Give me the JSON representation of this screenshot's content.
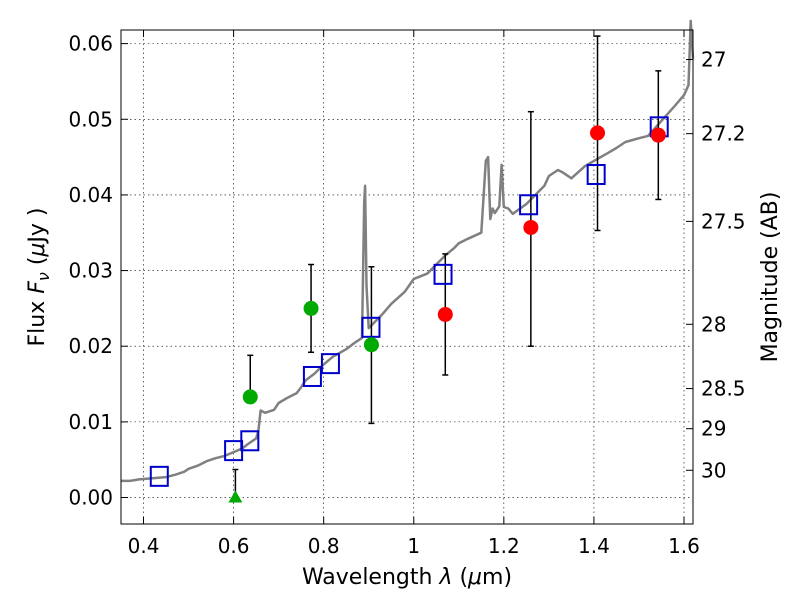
{
  "chart_data": {
    "type": "scatter",
    "title": "",
    "xlabel_parts": [
      "Wavelength  ",
      "λ",
      " (",
      "μ",
      "m)"
    ],
    "ylabel_parts": [
      "Flux  ",
      "F",
      "ν",
      "  (",
      "μ",
      "Jy )"
    ],
    "y2label": "Magnitude (AB)",
    "xlim": [
      0.35,
      1.62
    ],
    "ylim": [
      -0.0035,
      0.0618
    ],
    "grid": true,
    "x_ticks": [
      {
        "value": 0.4,
        "label": "0.4"
      },
      {
        "value": 0.6,
        "label": "0.6"
      },
      {
        "value": 0.8,
        "label": "0.8"
      },
      {
        "value": 1.0,
        "label": "1"
      },
      {
        "value": 1.2,
        "label": "1.2"
      },
      {
        "value": 1.4,
        "label": "1.4"
      },
      {
        "value": 1.6,
        "label": "1.6"
      }
    ],
    "y_ticks": [
      {
        "value": 0.0,
        "label": "0.00"
      },
      {
        "value": 0.01,
        "label": "0.01"
      },
      {
        "value": 0.02,
        "label": "0.02"
      },
      {
        "value": 0.03,
        "label": "0.03"
      },
      {
        "value": 0.04,
        "label": "0.04"
      },
      {
        "value": 0.05,
        "label": "0.05"
      },
      {
        "value": 0.06,
        "label": "0.06"
      }
    ],
    "y2_ticks": [
      {
        "flux": 0.0579,
        "label": "27"
      },
      {
        "flux": 0.0481,
        "label": "27.2"
      },
      {
        "flux": 0.0365,
        "label": "27.5"
      },
      {
        "flux": 0.0229,
        "label": "28"
      },
      {
        "flux": 0.0144,
        "label": "28.5"
      },
      {
        "flux": 0.0091,
        "label": "29"
      },
      {
        "flux": 0.0036,
        "label": "30"
      }
    ],
    "colors": {
      "model": "#808080",
      "model_photometry": "#0000cc",
      "observed_red": "#ff0000",
      "observed_green": "#00aa00",
      "errorbar": "#000000"
    },
    "series": [
      {
        "role": "model_spectrum",
        "style": "line",
        "x": [
          0.35,
          0.37,
          0.39,
          0.41,
          0.43,
          0.45,
          0.47,
          0.49,
          0.5,
          0.52,
          0.54,
          0.56,
          0.58,
          0.6,
          0.62,
          0.63,
          0.64,
          0.65,
          0.655,
          0.66,
          0.67,
          0.69,
          0.7,
          0.72,
          0.74,
          0.75,
          0.76,
          0.78,
          0.8,
          0.82,
          0.85,
          0.87,
          0.885,
          0.89,
          0.892,
          0.895,
          0.9,
          0.93,
          0.95,
          0.98,
          1.0,
          1.03,
          1.05,
          1.07,
          1.09,
          1.1,
          1.12,
          1.15,
          1.16,
          1.165,
          1.17,
          1.175,
          1.18,
          1.19,
          1.195,
          1.2,
          1.21,
          1.22,
          1.25,
          1.27,
          1.29,
          1.3,
          1.32,
          1.33,
          1.35,
          1.38,
          1.4,
          1.43,
          1.45,
          1.47,
          1.5,
          1.52,
          1.55,
          1.58,
          1.6,
          1.61,
          1.615,
          1.62
        ],
        "y": [
          0.0022,
          0.0022,
          0.0024,
          0.0025,
          0.0026,
          0.0027,
          0.003,
          0.0034,
          0.0038,
          0.0042,
          0.0048,
          0.0052,
          0.0055,
          0.006,
          0.0065,
          0.007,
          0.0074,
          0.0078,
          0.0088,
          0.0115,
          0.0112,
          0.0116,
          0.0125,
          0.0132,
          0.0138,
          0.0146,
          0.0155,
          0.0164,
          0.0176,
          0.0186,
          0.0196,
          0.0205,
          0.0211,
          0.039,
          0.0412,
          0.028,
          0.0224,
          0.0242,
          0.0256,
          0.0272,
          0.0289,
          0.0296,
          0.0308,
          0.032,
          0.033,
          0.0336,
          0.0342,
          0.035,
          0.0445,
          0.045,
          0.0368,
          0.0382,
          0.0376,
          0.0385,
          0.044,
          0.0384,
          0.0382,
          0.0375,
          0.0388,
          0.04,
          0.0412,
          0.0425,
          0.0433,
          0.043,
          0.0422,
          0.0438,
          0.0445,
          0.0455,
          0.0462,
          0.047,
          0.0475,
          0.0478,
          0.0498,
          0.0518,
          0.0532,
          0.0545,
          0.063,
          0.058
        ]
      },
      {
        "role": "model_photometry",
        "marker": "square",
        "x": [
          0.435,
          0.6,
          0.636,
          0.775,
          0.815,
          0.905,
          1.065,
          1.255,
          1.405,
          1.545
        ],
        "y": [
          0.0028,
          0.0062,
          0.0075,
          0.016,
          0.0177,
          0.0225,
          0.0295,
          0.0387,
          0.0427,
          0.049
        ]
      },
      {
        "role": "observed_near_ir",
        "marker": "circle",
        "color": "observed_red",
        "x": [
          1.07,
          1.26,
          1.408,
          1.543
        ],
        "y": [
          0.0242,
          0.0357,
          0.0482,
          0.0479
        ],
        "yerr_low": [
          0.008,
          0.0157,
          0.0129,
          0.0085
        ],
        "yerr_high": [
          0.008,
          0.0153,
          0.0128,
          0.0085
        ]
      },
      {
        "role": "observed_optical",
        "marker": "circle",
        "color": "observed_green",
        "x": [
          0.637,
          0.772,
          0.906
        ],
        "y": [
          0.0133,
          0.025,
          0.0202
        ],
        "yerr_low": [
          0.0,
          0.0058,
          0.0104
        ],
        "yerr_high": [
          0.0055,
          0.0058,
          0.0103
        ]
      },
      {
        "role": "observed_upper_limit",
        "marker": "triangle",
        "color": "observed_green",
        "x": [
          0.604
        ],
        "y": [
          0.0
        ],
        "yerr_low": [
          0.0
        ],
        "yerr_high": [
          0.0037
        ]
      }
    ]
  }
}
